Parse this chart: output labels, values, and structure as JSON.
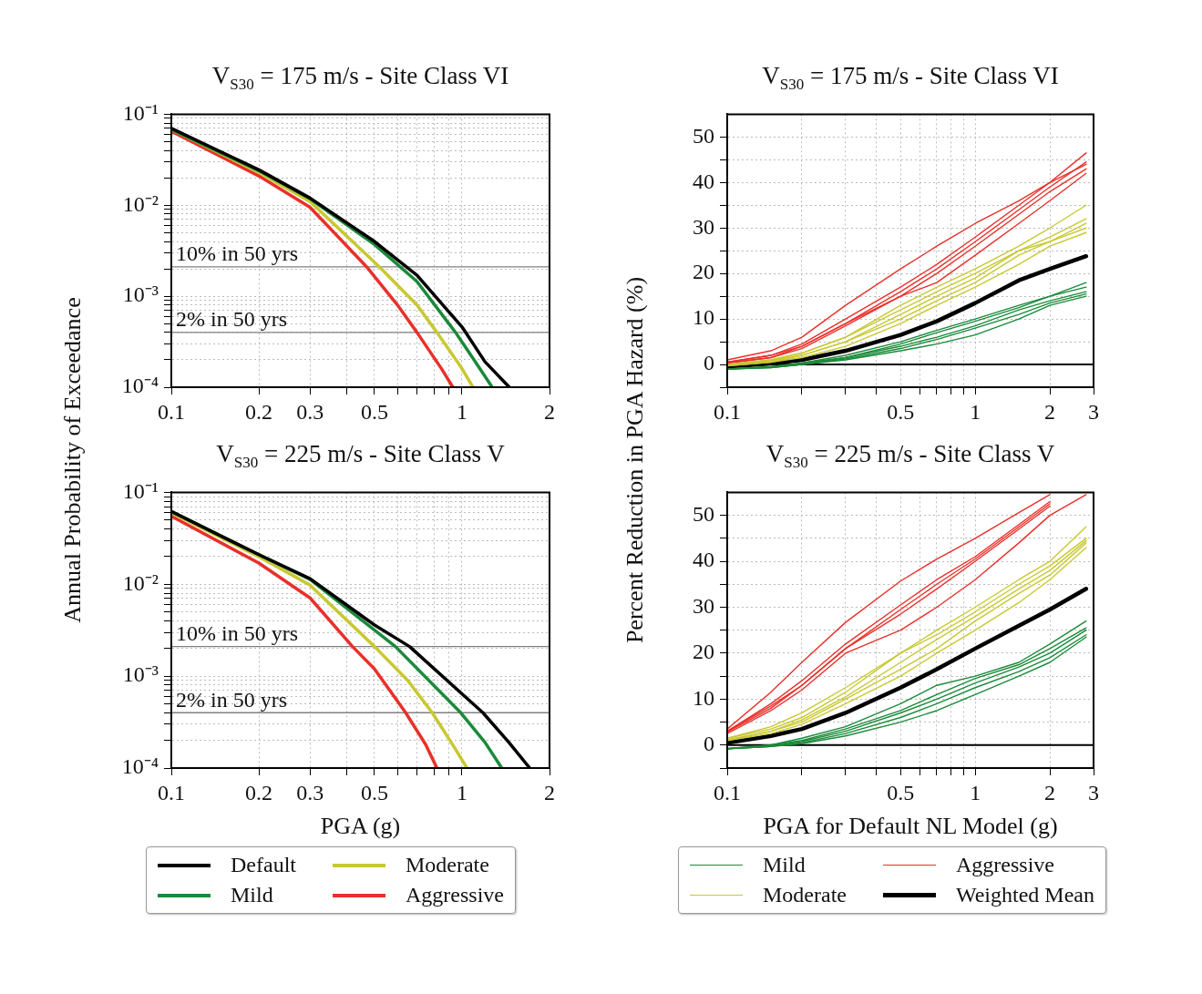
{
  "chart_data": [
    {
      "type": "line",
      "title": "V$_{S30}$ = 175 m/s - Site Class VI",
      "ylabel": "Annual Probability of Exceedance",
      "log": "xy",
      "grid": true,
      "xlim": [
        0.1,
        2
      ],
      "ylim": [
        0.0001,
        0.1
      ],
      "xticks": [
        0.1,
        0.2,
        0.3,
        {
          "value": 0.4,
          "label": null
        },
        0.5,
        {
          "value": 0.6,
          "label": null
        },
        {
          "value": 0.7,
          "label": null
        },
        {
          "value": 0.8,
          "label": null
        },
        {
          "value": 0.9,
          "label": null
        },
        1,
        2
      ],
      "yticks": [
        {
          "value": 0.0001,
          "label": "10⁻⁴"
        },
        {
          "value": 0.0002,
          "label": null
        },
        {
          "value": 0.0003,
          "label": null
        },
        {
          "value": 0.0004,
          "label": null
        },
        {
          "value": 0.0005,
          "label": null
        },
        {
          "value": 0.0006,
          "label": null
        },
        {
          "value": 0.0007,
          "label": null
        },
        {
          "value": 0.0008,
          "label": null
        },
        {
          "value": 0.0009,
          "label": null
        },
        {
          "value": 0.001,
          "label": "10⁻³"
        },
        {
          "value": 0.002,
          "label": null
        },
        {
          "value": 0.003,
          "label": null
        },
        {
          "value": 0.004,
          "label": null
        },
        {
          "value": 0.005,
          "label": null
        },
        {
          "value": 0.006,
          "label": null
        },
        {
          "value": 0.007,
          "label": null
        },
        {
          "value": 0.008,
          "label": null
        },
        {
          "value": 0.009,
          "label": null
        },
        {
          "value": 0.01,
          "label": "10⁻²"
        },
        {
          "value": 0.02,
          "label": null
        },
        {
          "value": 0.03,
          "label": null
        },
        {
          "value": 0.04,
          "label": null
        },
        {
          "value": 0.05,
          "label": null
        },
        {
          "value": 0.06,
          "label": null
        },
        {
          "value": 0.07,
          "label": null
        },
        {
          "value": 0.08,
          "label": null
        },
        {
          "value": 0.09,
          "label": null
        },
        {
          "value": 0.1,
          "label": "10⁻¹"
        }
      ],
      "ref_lines": [
        {
          "axis": "y",
          "value": 0.0021,
          "label": "10% in 50 yrs",
          "color": "#808080"
        },
        {
          "axis": "y",
          "value": 0.0004,
          "label": "2% in 50 yrs",
          "color": "#808080"
        }
      ],
      "series": [
        {
          "color": "#000000",
          "x": [
            0.1,
            0.2,
            0.3,
            0.5,
            0.7,
            1,
            1.2,
            1.455
          ],
          "values": [
            0.07,
            0.0245,
            0.012,
            0.004,
            0.0017,
            0.00046,
            0.00019,
            0.0001
          ]
        },
        {
          "color": "#1a8a3a",
          "x": [
            0.1,
            0.2,
            0.3,
            0.5,
            0.7,
            0.95,
            1.1,
            1.27
          ],
          "values": [
            0.068,
            0.024,
            0.0118,
            0.0037,
            0.00145,
            0.0004,
            0.0002,
            0.0001
          ]
        },
        {
          "color": "#c8c832",
          "x": [
            0.1,
            0.2,
            0.3,
            0.52,
            0.7,
            0.82,
            1,
            1.09
          ],
          "values": [
            0.068,
            0.023,
            0.011,
            0.0021,
            0.0008,
            0.0004,
            0.00016,
            0.0001
          ]
        },
        {
          "color": "#e8302a",
          "x": [
            0.1,
            0.2,
            0.3,
            0.47,
            0.6,
            0.7,
            0.85,
            0.93
          ],
          "values": [
            0.065,
            0.021,
            0.0095,
            0.0021,
            0.0008,
            0.0004,
            0.00016,
            0.0001
          ]
        }
      ]
    },
    {
      "type": "line",
      "title": "V$_{S30}$ = 175 m/s - Site Class VI",
      "ylabel": "Percent Reduction in PGA Hazard (%)",
      "log": "x",
      "grid": true,
      "xlim": [
        0.1,
        3
      ],
      "ylim": [
        -5,
        55
      ],
      "xticks": [
        0.1,
        {
          "value": 0.2,
          "label": null
        },
        {
          "value": 0.3,
          "label": null
        },
        {
          "value": 0.4,
          "label": null
        },
        0.5,
        {
          "value": 0.6,
          "label": null
        },
        {
          "value": 0.7,
          "label": null
        },
        {
          "value": 0.8,
          "label": null
        },
        {
          "value": 0.9,
          "label": null
        },
        1,
        2,
        3
      ],
      "yticks": [
        {
          "value": -5,
          "label": null
        },
        0,
        {
          "value": 5,
          "label": null
        },
        10,
        {
          "value": 15,
          "label": null
        },
        20,
        {
          "value": 25,
          "label": null
        },
        30,
        {
          "value": 35,
          "label": null
        },
        40,
        {
          "value": 45,
          "label": null
        },
        50
      ],
      "ref_lines": [
        {
          "axis": "y",
          "value": 0,
          "color": "#000000"
        }
      ],
      "x": [
        0.1,
        0.15,
        0.2,
        0.3,
        0.5,
        0.7,
        1,
        1.5,
        2,
        2.8
      ],
      "series": [
        {
          "color": "#1a8a3a",
          "values": [
            -1,
            -0.5,
            0.3,
            2,
            5,
            7.5,
            10,
            13,
            15,
            18
          ]
        },
        {
          "color": "#1a8a3a",
          "values": [
            -1,
            -0.5,
            0.3,
            1.5,
            4.5,
            7,
            9.5,
            12.5,
            15,
            17
          ]
        },
        {
          "color": "#1a8a3a",
          "values": [
            -1,
            -0.6,
            0,
            1.5,
            4,
            6,
            8.5,
            12,
            14,
            16
          ]
        },
        {
          "color": "#1a8a3a",
          "values": [
            -1,
            -0.7,
            0,
            1.2,
            3.5,
            5.5,
            8,
            11,
            13.5,
            15.5
          ]
        },
        {
          "color": "#1a8a3a",
          "values": [
            -1,
            -0.7,
            0,
            1,
            3,
            4.5,
            6.5,
            10,
            13,
            15
          ]
        },
        {
          "color": "#c8c832",
          "values": [
            0,
            1,
            2.5,
            6,
            13,
            17,
            21,
            26,
            30,
            35
          ]
        },
        {
          "color": "#c8c832",
          "values": [
            0,
            1,
            2.5,
            6,
            12,
            16,
            20,
            25,
            28,
            32
          ]
        },
        {
          "color": "#c8c832",
          "values": [
            0,
            0.8,
            2,
            5,
            11,
            15,
            19,
            25,
            27,
            31
          ]
        },
        {
          "color": "#c8c832",
          "values": [
            -0.3,
            0.5,
            2,
            5,
            10,
            14,
            18,
            24,
            27,
            30
          ]
        },
        {
          "color": "#c8c832",
          "values": [
            -0.3,
            0.5,
            1.5,
            4,
            9,
            13,
            17,
            22,
            26,
            29
          ]
        },
        {
          "color": "#e8302a",
          "values": [
            1,
            3,
            6,
            13,
            21,
            26,
            31,
            36,
            40,
            46.5
          ]
        },
        {
          "color": "#e8302a",
          "values": [
            0.5,
            2,
            4.5,
            10,
            17,
            22,
            28,
            35,
            40,
            44
          ]
        },
        {
          "color": "#e8302a",
          "values": [
            0.5,
            2,
            4,
            9,
            16,
            21,
            27,
            34,
            39,
            44.5
          ]
        },
        {
          "color": "#e8302a",
          "values": [
            0.3,
            1.5,
            4,
            9,
            15,
            20,
            26,
            33,
            38,
            43
          ]
        },
        {
          "color": "#e8302a",
          "values": [
            0.3,
            1.5,
            3.5,
            8.5,
            15,
            18,
            24,
            31,
            36,
            42
          ]
        },
        {
          "color": "#000000",
          "values": [
            -0.5,
            0.2,
            1,
            3,
            6.5,
            9.5,
            13.5,
            18.5,
            21,
            23.8
          ]
        }
      ]
    },
    {
      "type": "line",
      "title": "V$_{S30}$ = 225 m/s - Site Class V",
      "xlabel": "PGA (g)",
      "log": "xy",
      "grid": true,
      "legend": "bottom",
      "xlim": [
        0.1,
        2
      ],
      "ylim": [
        0.0001,
        0.1
      ],
      "xticks": [
        0.1,
        0.2,
        0.3,
        {
          "value": 0.4,
          "label": null
        },
        0.5,
        {
          "value": 0.6,
          "label": null
        },
        {
          "value": 0.7,
          "label": null
        },
        {
          "value": 0.8,
          "label": null
        },
        {
          "value": 0.9,
          "label": null
        },
        1,
        2
      ],
      "yticks": [
        {
          "value": 0.0001,
          "label": "10⁻⁴"
        },
        {
          "value": 0.0002,
          "label": null
        },
        {
          "value": 0.0003,
          "label": null
        },
        {
          "value": 0.0004,
          "label": null
        },
        {
          "value": 0.0005,
          "label": null
        },
        {
          "value": 0.0006,
          "label": null
        },
        {
          "value": 0.0007,
          "label": null
        },
        {
          "value": 0.0008,
          "label": null
        },
        {
          "value": 0.0009,
          "label": null
        },
        {
          "value": 0.001,
          "label": "10⁻³"
        },
        {
          "value": 0.002,
          "label": null
        },
        {
          "value": 0.003,
          "label": null
        },
        {
          "value": 0.004,
          "label": null
        },
        {
          "value": 0.005,
          "label": null
        },
        {
          "value": 0.006,
          "label": null
        },
        {
          "value": 0.007,
          "label": null
        },
        {
          "value": 0.008,
          "label": null
        },
        {
          "value": 0.009,
          "label": null
        },
        {
          "value": 0.01,
          "label": "10⁻²"
        },
        {
          "value": 0.02,
          "label": null
        },
        {
          "value": 0.03,
          "label": null
        },
        {
          "value": 0.04,
          "label": null
        },
        {
          "value": 0.05,
          "label": null
        },
        {
          "value": 0.06,
          "label": null
        },
        {
          "value": 0.07,
          "label": null
        },
        {
          "value": 0.08,
          "label": null
        },
        {
          "value": 0.09,
          "label": null
        },
        {
          "value": 0.1,
          "label": "10⁻¹"
        }
      ],
      "ref_lines": [
        {
          "axis": "y",
          "value": 0.0021,
          "label": "10% in 50 yrs",
          "color": "#808080"
        },
        {
          "axis": "y",
          "value": 0.0004,
          "label": "2% in 50 yrs",
          "color": "#808080"
        }
      ],
      "series": [
        {
          "name": "Default",
          "color": "#000000",
          "x": [
            0.1,
            0.2,
            0.3,
            0.5,
            0.66,
            1.18,
            1.45,
            1.71
          ],
          "values": [
            0.062,
            0.021,
            0.0115,
            0.0036,
            0.0021,
            0.0004,
            0.00019,
            0.0001
          ]
        },
        {
          "name": "Mild",
          "color": "#1a8a3a",
          "x": [
            0.1,
            0.2,
            0.3,
            0.59,
            0.99,
            1.2,
            1.37
          ],
          "values": [
            0.062,
            0.021,
            0.0113,
            0.0021,
            0.0004,
            0.00019,
            0.0001
          ]
        },
        {
          "name": "Moderate",
          "color": "#c8c832",
          "x": [
            0.1,
            0.2,
            0.3,
            0.5,
            0.65,
            0.79,
            0.95,
            1.04
          ],
          "values": [
            0.06,
            0.02,
            0.0098,
            0.0021,
            0.0009,
            0.0004,
            0.00016,
            0.0001
          ]
        },
        {
          "name": "Aggressive",
          "color": "#e8302a",
          "x": [
            0.1,
            0.2,
            0.3,
            0.42,
            0.5,
            0.64,
            0.75,
            0.82
          ],
          "values": [
            0.055,
            0.017,
            0.0071,
            0.0021,
            0.0012,
            0.0004,
            0.00018,
            0.0001
          ]
        }
      ]
    },
    {
      "type": "line",
      "title": "V$_{S30}$ = 225 m/s - Site Class V",
      "xlabel": "PGA for Default NL Model (g)",
      "log": "x",
      "grid": true,
      "legend": "bottom",
      "xlim": [
        0.1,
        3
      ],
      "ylim": [
        -5,
        55
      ],
      "xticks": [
        0.1,
        {
          "value": 0.2,
          "label": null
        },
        {
          "value": 0.3,
          "label": null
        },
        {
          "value": 0.4,
          "label": null
        },
        0.5,
        {
          "value": 0.6,
          "label": null
        },
        {
          "value": 0.7,
          "label": null
        },
        {
          "value": 0.8,
          "label": null
        },
        {
          "value": 0.9,
          "label": null
        },
        1,
        2,
        3
      ],
      "yticks": [
        {
          "value": -5,
          "label": null
        },
        0,
        {
          "value": 5,
          "label": null
        },
        10,
        {
          "value": 15,
          "label": null
        },
        20,
        {
          "value": 25,
          "label": null
        },
        30,
        {
          "value": 35,
          "label": null
        },
        40,
        {
          "value": 45,
          "label": null
        },
        50
      ],
      "ref_lines": [
        {
          "axis": "y",
          "value": 0,
          "color": "#000000"
        }
      ],
      "x": [
        0.1,
        0.15,
        0.2,
        0.3,
        0.5,
        0.7,
        1,
        1.5,
        2,
        2.8
      ],
      "series": [
        {
          "name": "Mild",
          "color": "#1a8a3a",
          "values": [
            -0.8,
            0,
            1.5,
            4,
            9,
            13,
            15,
            18,
            22,
            27
          ]
        },
        {
          "color": "#1a8a3a",
          "values": [
            -0.8,
            0,
            1,
            3.5,
            7.5,
            11,
            14.5,
            17.5,
            21,
            25.5
          ]
        },
        {
          "color": "#1a8a3a",
          "values": [
            -0.8,
            -0.3,
            0.8,
            3,
            7,
            10,
            13.5,
            17,
            20,
            25
          ]
        },
        {
          "color": "#1a8a3a",
          "values": [
            -0.8,
            -0.3,
            0.5,
            2.5,
            6,
            9,
            12.5,
            16,
            19,
            24
          ]
        },
        {
          "color": "#1a8a3a",
          "values": [
            -0.8,
            -0.3,
            0.3,
            2,
            5,
            7.5,
            11,
            15,
            18,
            23.5
          ]
        },
        {
          "name": "Moderate",
          "color": "#c8c832",
          "values": [
            1.5,
            4,
            7,
            12.5,
            20,
            25,
            30,
            36,
            40,
            47.5
          ]
        },
        {
          "color": "#c8c832",
          "values": [
            1.5,
            3.5,
            6,
            11.5,
            20,
            24,
            29,
            35,
            39,
            45
          ]
        },
        {
          "color": "#c8c832",
          "values": [
            1.2,
            3,
            5.5,
            10.5,
            18,
            23,
            28,
            34,
            38,
            44.5
          ]
        },
        {
          "color": "#c8c832",
          "values": [
            1,
            3,
            5,
            10,
            16.5,
            21,
            27,
            33,
            37,
            44
          ]
        },
        {
          "color": "#c8c832",
          "values": [
            1,
            2.5,
            4.5,
            9,
            15,
            20,
            25,
            31,
            36,
            43
          ]
        },
        {
          "name": "Aggressive",
          "color": "#e8302a",
          "values": [
            3.5,
            11.5,
            18,
            26.7,
            35.7,
            40.5,
            45,
            50.6,
            54.5,
            null
          ]
        },
        {
          "color": "#e8302a",
          "values": [
            3,
            9,
            14,
            22,
            30.5,
            36,
            41,
            48,
            53,
            null
          ]
        },
        {
          "color": "#e8302a",
          "values": [
            3,
            8.5,
            13,
            21,
            29.5,
            35,
            40.5,
            47.5,
            52.5,
            null
          ]
        },
        {
          "color": "#e8302a",
          "values": [
            2.8,
            8,
            13,
            21,
            28.5,
            34,
            40,
            47,
            52,
            null
          ]
        },
        {
          "color": "#e8302a",
          "values": [
            2.5,
            7.5,
            12,
            20,
            25,
            30,
            36,
            44,
            50,
            54.5
          ]
        },
        {
          "name": "Weighted Mean",
          "color": "#000000",
          "values": [
            0.5,
            2,
            3.5,
            7,
            12.5,
            16.5,
            21,
            26,
            29.5,
            34
          ]
        }
      ]
    }
  ]
}
